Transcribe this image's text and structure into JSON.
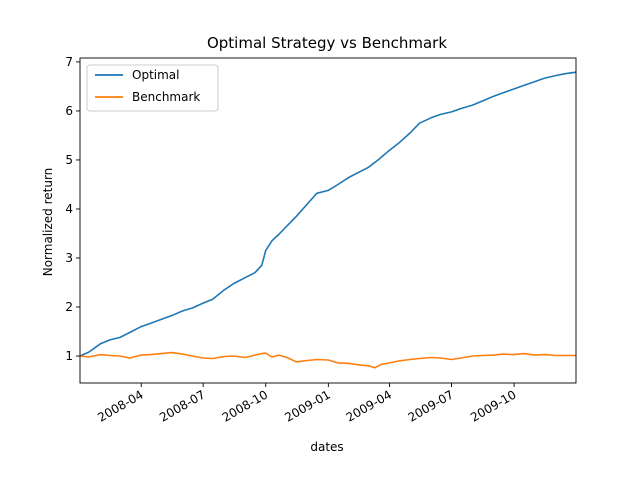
{
  "chart_data": {
    "type": "line",
    "title": "Optimal Strategy vs Benchmark",
    "xlabel": "dates",
    "ylabel": "Normalized return",
    "x_range": [
      "2008-01-02",
      "2009-12-31"
    ],
    "ylim": [
      0.45,
      7.08
    ],
    "x_ticks": [
      "2008-04",
      "2008-07",
      "2008-10",
      "2009-01",
      "2009-04",
      "2009-07",
      "2009-10"
    ],
    "y_ticks": [
      1,
      2,
      3,
      4,
      5,
      6,
      7
    ],
    "grid": false,
    "legend_position": "top-left",
    "series": [
      {
        "name": "Optimal",
        "color": "#1f77b4",
        "points": [
          [
            "2008-01-02",
            1.0
          ],
          [
            "2008-01-15",
            1.08
          ],
          [
            "2008-02-01",
            1.25
          ],
          [
            "2008-02-15",
            1.33
          ],
          [
            "2008-03-01",
            1.38
          ],
          [
            "2008-03-15",
            1.48
          ],
          [
            "2008-04-01",
            1.6
          ],
          [
            "2008-04-15",
            1.67
          ],
          [
            "2008-05-01",
            1.75
          ],
          [
            "2008-05-15",
            1.82
          ],
          [
            "2008-06-01",
            1.92
          ],
          [
            "2008-06-15",
            1.98
          ],
          [
            "2008-07-01",
            2.08
          ],
          [
            "2008-07-15",
            2.16
          ],
          [
            "2008-08-01",
            2.35
          ],
          [
            "2008-08-15",
            2.48
          ],
          [
            "2008-09-01",
            2.6
          ],
          [
            "2008-09-15",
            2.7
          ],
          [
            "2008-09-25",
            2.85
          ],
          [
            "2008-10-01",
            3.15
          ],
          [
            "2008-10-10",
            3.35
          ],
          [
            "2008-10-20",
            3.48
          ],
          [
            "2008-11-01",
            3.65
          ],
          [
            "2008-11-15",
            3.85
          ],
          [
            "2008-12-01",
            4.1
          ],
          [
            "2008-12-15",
            4.32
          ],
          [
            "2009-01-01",
            4.38
          ],
          [
            "2009-01-15",
            4.5
          ],
          [
            "2009-02-01",
            4.65
          ],
          [
            "2009-02-15",
            4.75
          ],
          [
            "2009-03-01",
            4.85
          ],
          [
            "2009-03-15",
            5.0
          ],
          [
            "2009-04-01",
            5.2
          ],
          [
            "2009-04-15",
            5.35
          ],
          [
            "2009-05-01",
            5.55
          ],
          [
            "2009-05-15",
            5.75
          ],
          [
            "2009-06-01",
            5.86
          ],
          [
            "2009-06-15",
            5.93
          ],
          [
            "2009-07-01",
            5.98
          ],
          [
            "2009-07-15",
            6.05
          ],
          [
            "2009-08-01",
            6.12
          ],
          [
            "2009-08-15",
            6.2
          ],
          [
            "2009-09-01",
            6.3
          ],
          [
            "2009-09-15",
            6.37
          ],
          [
            "2009-10-01",
            6.45
          ],
          [
            "2009-10-15",
            6.52
          ],
          [
            "2009-11-01",
            6.6
          ],
          [
            "2009-11-15",
            6.67
          ],
          [
            "2009-12-01",
            6.72
          ],
          [
            "2009-12-15",
            6.76
          ],
          [
            "2009-12-31",
            6.79
          ]
        ]
      },
      {
        "name": "Benchmark",
        "color": "#ff7f0e",
        "points": [
          [
            "2008-01-02",
            1.0
          ],
          [
            "2008-01-15",
            0.98
          ],
          [
            "2008-02-01",
            1.03
          ],
          [
            "2008-02-15",
            1.01
          ],
          [
            "2008-03-01",
            1.0
          ],
          [
            "2008-03-15",
            0.96
          ],
          [
            "2008-04-01",
            1.02
          ],
          [
            "2008-04-15",
            1.03
          ],
          [
            "2008-05-01",
            1.05
          ],
          [
            "2008-05-15",
            1.07
          ],
          [
            "2008-06-01",
            1.04
          ],
          [
            "2008-06-15",
            1.0
          ],
          [
            "2008-07-01",
            0.96
          ],
          [
            "2008-07-15",
            0.95
          ],
          [
            "2008-08-01",
            0.99
          ],
          [
            "2008-08-15",
            1.0
          ],
          [
            "2008-09-01",
            0.97
          ],
          [
            "2008-09-15",
            1.02
          ],
          [
            "2008-09-25",
            1.05
          ],
          [
            "2008-10-01",
            1.06
          ],
          [
            "2008-10-10",
            0.98
          ],
          [
            "2008-10-20",
            1.02
          ],
          [
            "2008-11-01",
            0.97
          ],
          [
            "2008-11-15",
            0.88
          ],
          [
            "2008-12-01",
            0.91
          ],
          [
            "2008-12-15",
            0.93
          ],
          [
            "2009-01-01",
            0.92
          ],
          [
            "2009-01-15",
            0.86
          ],
          [
            "2009-02-01",
            0.85
          ],
          [
            "2009-02-15",
            0.82
          ],
          [
            "2009-03-01",
            0.8
          ],
          [
            "2009-03-10",
            0.76
          ],
          [
            "2009-03-20",
            0.83
          ],
          [
            "2009-04-01",
            0.86
          ],
          [
            "2009-04-15",
            0.9
          ],
          [
            "2009-05-01",
            0.93
          ],
          [
            "2009-05-15",
            0.95
          ],
          [
            "2009-06-01",
            0.97
          ],
          [
            "2009-06-15",
            0.96
          ],
          [
            "2009-07-01",
            0.93
          ],
          [
            "2009-07-15",
            0.96
          ],
          [
            "2009-08-01",
            1.0
          ],
          [
            "2009-08-15",
            1.01
          ],
          [
            "2009-09-01",
            1.02
          ],
          [
            "2009-09-15",
            1.04
          ],
          [
            "2009-10-01",
            1.03
          ],
          [
            "2009-10-15",
            1.05
          ],
          [
            "2009-11-01",
            1.02
          ],
          [
            "2009-11-15",
            1.03
          ],
          [
            "2009-12-01",
            1.01
          ],
          [
            "2009-12-31",
            1.01
          ]
        ]
      }
    ]
  }
}
